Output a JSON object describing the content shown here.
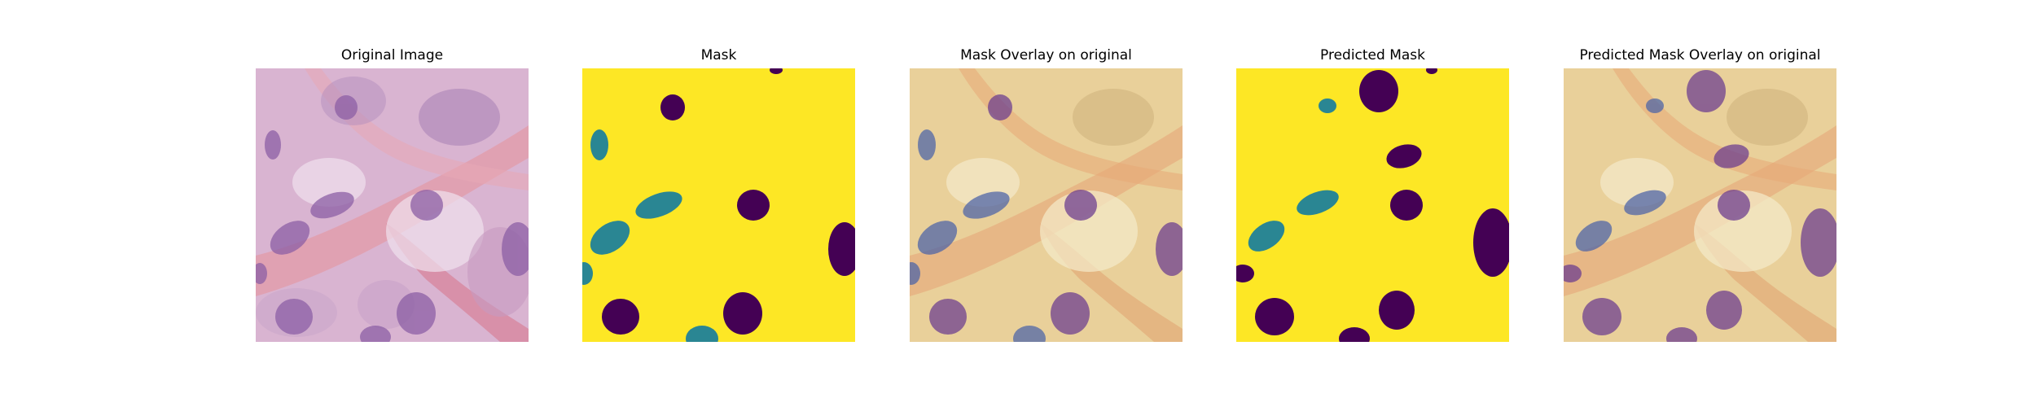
{
  "figure": {
    "panels": [
      {
        "title": "Original Image"
      },
      {
        "title": "Mask"
      },
      {
        "title": "Mask Overlay on original"
      },
      {
        "title": "Predicted Mask"
      },
      {
        "title": "Predicted Mask Overlay on original"
      }
    ],
    "colors": {
      "mask_background": "#fde725",
      "nucleus_class_a": "#440154",
      "nucleus_class_b": "#2a8693"
    }
  }
}
